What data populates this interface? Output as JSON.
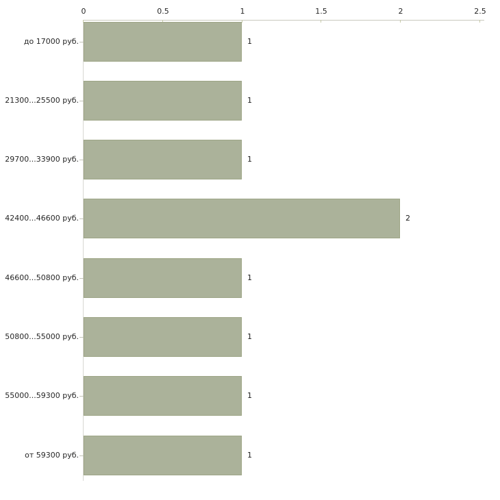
{
  "chart_data": {
    "type": "bar",
    "orientation": "horizontal",
    "title": "",
    "categories": [
      "до 17000 руб.",
      "21300...25500 руб.",
      "29700...33900 руб.",
      "42400...46600 руб.",
      "46600...50800 руб.",
      "50800...55000 руб.",
      "55000...59300 руб.",
      "от 59300 руб."
    ],
    "values": [
      1,
      1,
      1,
      2,
      1,
      1,
      1,
      1
    ],
    "value_labels": [
      "1",
      "1",
      "1",
      "2",
      "1",
      "1",
      "1",
      "1"
    ],
    "xlabel": "",
    "ylabel": "",
    "xlim": [
      0,
      2.5
    ],
    "x_tick_values": [
      0,
      0.5,
      1,
      1.5,
      2,
      2.5
    ],
    "x_tick_labels": [
      "0",
      "0.5",
      "1",
      "1.5",
      "2",
      "2.5"
    ],
    "grid": false,
    "legend_position": "none",
    "colors": {
      "bar_fill": "#ABB29A",
      "bar_border": "#9DA586",
      "x_axis_line": "#C9C9BD",
      "x_tick": "#C6C9A8",
      "y_axis_line": "#D7D7D2",
      "y_tick": "#C4C4B8",
      "text": "#262626",
      "background": "#FFFFFF"
    }
  }
}
